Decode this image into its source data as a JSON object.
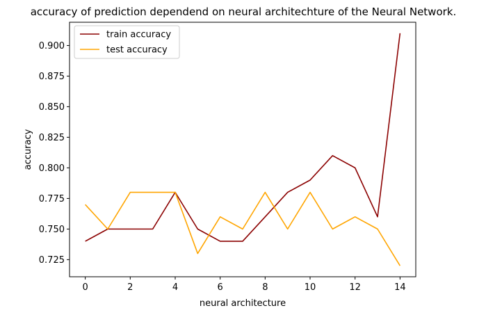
{
  "chart_data": {
    "type": "line",
    "title": "accuracy of prediction dependend on neural architechture of the Neural Network.",
    "xlabel": "neural architecture",
    "ylabel": "accuracy",
    "x": [
      0,
      1,
      2,
      3,
      4,
      5,
      6,
      7,
      8,
      9,
      10,
      11,
      12,
      13,
      14
    ],
    "xlim": [
      -0.7,
      14.7
    ],
    "ylim": [
      0.711,
      0.919
    ],
    "xticks": [
      0,
      2,
      4,
      6,
      8,
      10,
      12,
      14
    ],
    "xtick_labels": [
      "0",
      "2",
      "4",
      "6",
      "8",
      "10",
      "12",
      "14"
    ],
    "yticks": [
      0.725,
      0.75,
      0.775,
      0.8,
      0.825,
      0.85,
      0.875,
      0.9
    ],
    "ytick_labels": [
      "0.725",
      "0.750",
      "0.775",
      "0.800",
      "0.825",
      "0.850",
      "0.875",
      "0.900"
    ],
    "grid": false,
    "legend_position": "upper-left",
    "series": [
      {
        "name": "train accuracy",
        "color": "#8b0000",
        "values": [
          0.74,
          0.75,
          0.75,
          0.75,
          0.78,
          0.75,
          0.74,
          0.74,
          0.76,
          0.78,
          0.79,
          0.81,
          0.8,
          0.76,
          0.91
        ]
      },
      {
        "name": "test accuracy",
        "color": "#ffa500",
        "values": [
          0.77,
          0.75,
          0.78,
          0.78,
          0.78,
          0.73,
          0.76,
          0.75,
          0.78,
          0.75,
          0.78,
          0.75,
          0.76,
          0.75,
          0.72
        ]
      }
    ]
  }
}
